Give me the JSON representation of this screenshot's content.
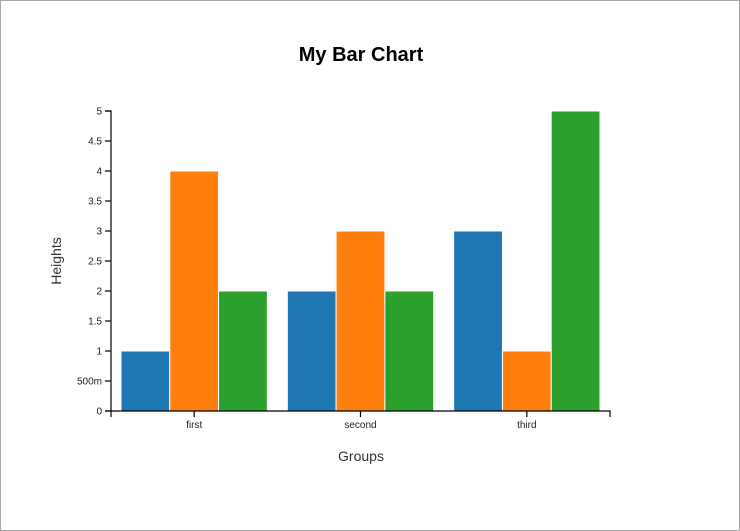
{
  "chart_data": {
    "type": "bar",
    "title": "My Bar Chart",
    "xlabel": "Groups",
    "ylabel": "Heights",
    "categories": [
      "first",
      "second",
      "third"
    ],
    "series": [
      {
        "values": [
          1,
          2,
          3
        ],
        "color": "#1f77b4"
      },
      {
        "values": [
          4,
          3,
          1
        ],
        "color": "#ff7f0e"
      },
      {
        "values": [
          2,
          2,
          5
        ],
        "color": "#2ca02c"
      }
    ],
    "ylim": [
      0,
      5
    ],
    "yticks": [
      0,
      0.5,
      1,
      1.5,
      2,
      2.5,
      3,
      3.5,
      4,
      4.5,
      5
    ],
    "ytick_labels": [
      "0",
      "500m",
      "1",
      "1.5",
      "2",
      "2.5",
      "3",
      "3.5",
      "4",
      "4.5",
      "5"
    ],
    "grid": false,
    "legend": "none"
  }
}
